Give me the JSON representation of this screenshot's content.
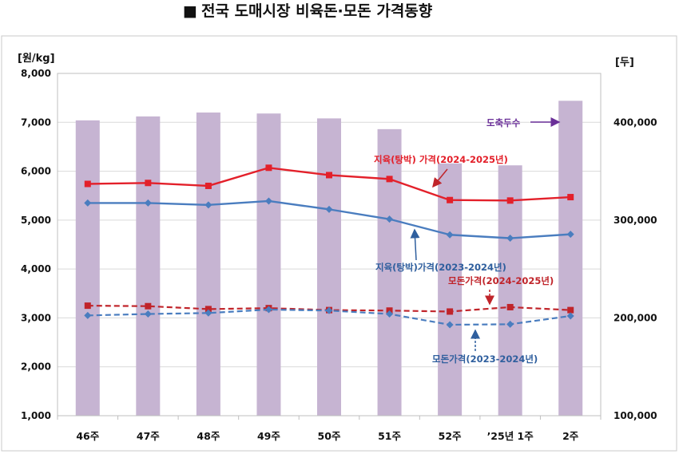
{
  "chart_data": {
    "type": "bar+line",
    "title": "전국 도매시장 비육돈·모돈 가격동향",
    "title_marker": "■",
    "categories": [
      "46주",
      "47주",
      "48주",
      "49주",
      "50주",
      "51주",
      "52주",
      "’25년 1주",
      "2주"
    ],
    "y_left": {
      "unit": "[원/kg]",
      "min": 1000,
      "max": 8000,
      "step": 1000,
      "ticks": [
        "1,000",
        "2,000",
        "3,000",
        "4,000",
        "5,000",
        "6,000",
        "7,000",
        "8,000"
      ]
    },
    "y_right": {
      "unit": "[두]",
      "min": 100000,
      "max": 450000,
      "ticks": [
        "100,000",
        "200,000",
        "300,000",
        "400,000"
      ]
    },
    "grid": true,
    "series": [
      {
        "name": "도축두수",
        "kind": "bar",
        "axis": "right",
        "color": "#c6b4d2",
        "values": [
          402000,
          406000,
          410000,
          409000,
          404000,
          393000,
          358000,
          356000,
          422000
        ]
      },
      {
        "name": "지육(탕박) 가격(2024-2025년)",
        "kind": "line",
        "axis": "left",
        "color": "#e3202a",
        "dashed": false,
        "values": [
          5740,
          5760,
          5700,
          6070,
          5920,
          5840,
          5410,
          5400,
          5470
        ]
      },
      {
        "name": "지육(탕박)가격(2023-2024년)",
        "kind": "line",
        "axis": "left",
        "color": "#4a7dbf",
        "dashed": false,
        "values": [
          5350,
          5350,
          5310,
          5390,
          5220,
          5020,
          4700,
          4630,
          4710
        ]
      },
      {
        "name": "모돈가격(2024-2025년)",
        "kind": "line",
        "axis": "left",
        "color": "#c0242a",
        "dashed": true,
        "values": [
          3250,
          3240,
          3180,
          3200,
          3160,
          3150,
          3130,
          3220,
          3160
        ]
      },
      {
        "name": "모돈가격(2023-2024년)",
        "kind": "line",
        "axis": "left",
        "color": "#4a7dbf",
        "dashed": true,
        "values": [
          3050,
          3080,
          3100,
          3170,
          3150,
          3080,
          2860,
          2870,
          3040
        ]
      }
    ],
    "annotations": [
      {
        "text": "도축두수",
        "series": 0,
        "color": "#6a2f98"
      },
      {
        "text": "지육(탕박) 가격(2024-2025년)",
        "series": 1,
        "color": "#e3202a"
      },
      {
        "text": "지육(탕박)가격(2023-2024년)",
        "series": 2,
        "color": "#2f5f9e"
      },
      {
        "text": "모돈가격(2024-2025년)",
        "series": 3,
        "color": "#c0242a"
      },
      {
        "text": "모돈가격(2023-2024년)",
        "series": 4,
        "color": "#2f5f9e"
      }
    ]
  }
}
